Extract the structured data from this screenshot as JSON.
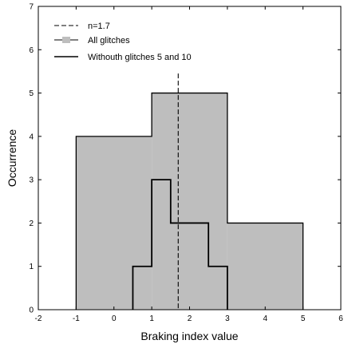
{
  "chart_data": {
    "type": "histogram",
    "title": "",
    "xlabel": "Braking index value",
    "ylabel": "Occurrence",
    "xlim": [
      -2,
      6
    ],
    "ylim": [
      0,
      7
    ],
    "xticks": [
      -2,
      -1,
      0,
      1,
      2,
      3,
      4,
      5,
      6
    ],
    "yticks": [
      0,
      1,
      2,
      3,
      4,
      5,
      6,
      7
    ],
    "grid": false,
    "legend_position": "top-left",
    "series": [
      {
        "name": "All glitches",
        "style": "filled",
        "fill": "#bebebe",
        "bins": [
          {
            "x0": -1,
            "x1": 1,
            "count": 4
          },
          {
            "x0": 1,
            "x1": 3,
            "count": 5
          },
          {
            "x0": 3,
            "x1": 5,
            "count": 2
          }
        ]
      },
      {
        "name": "Withouth glitches 5 and 10",
        "style": "step",
        "stroke": "#000000",
        "bins": [
          {
            "x0": 0.5,
            "x1": 1.0,
            "count": 1
          },
          {
            "x0": 1.0,
            "x1": 1.5,
            "count": 3
          },
          {
            "x0": 1.5,
            "x1": 2.5,
            "count": 2
          },
          {
            "x0": 2.5,
            "x1": 3.0,
            "count": 1
          }
        ]
      }
    ],
    "reference_lines": [
      {
        "name": "n=1.7",
        "x": 1.7,
        "style": "dashed"
      }
    ]
  }
}
